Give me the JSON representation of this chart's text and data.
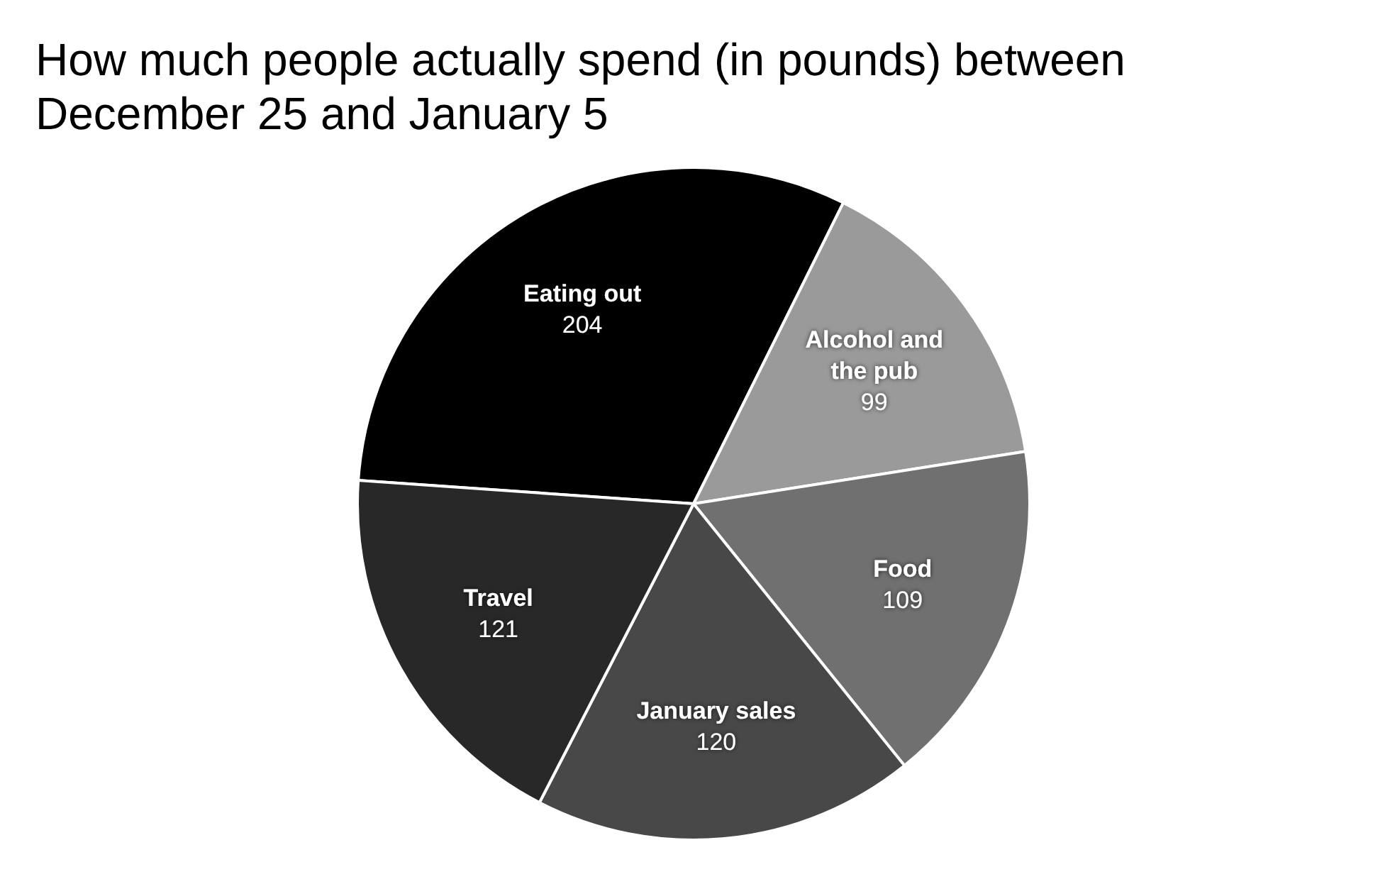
{
  "chart_data": {
    "type": "pie",
    "title": "How much people actually spend (in pounds) between December 25 and January 5",
    "categories": [
      "Eating out",
      "Alcohol and the pub",
      "Food",
      "January sales",
      "Travel"
    ],
    "values": [
      204,
      99,
      109,
      120,
      121
    ],
    "colors": [
      "#000000",
      "#9a9a9a",
      "#707070",
      "#484848",
      "#282828"
    ],
    "data_labels": true
  }
}
